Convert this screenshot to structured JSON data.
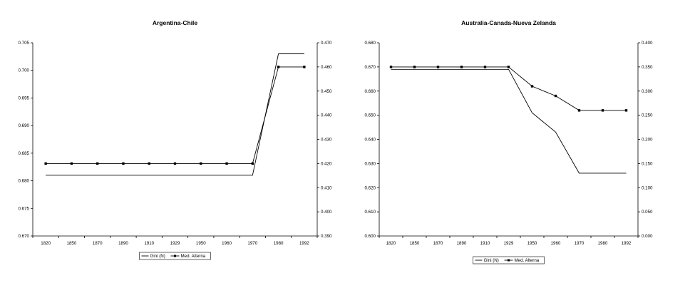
{
  "chart_data": [
    {
      "type": "line",
      "title": "Argentina-Chile",
      "categories": [
        "1820",
        "1850",
        "1870",
        "1890",
        "1910",
        "1929",
        "1950",
        "1960",
        "1970",
        "1980",
        "1992"
      ],
      "y_left": {
        "min": 0.67,
        "max": 0.705,
        "ticks": [
          "0.670",
          "0.675",
          "0.680",
          "0.685",
          "0.690",
          "0.695",
          "0.700",
          "0.705"
        ]
      },
      "y_right": {
        "min": 0.39,
        "max": 0.47,
        "ticks": [
          "0.390",
          "0.400",
          "0.410",
          "0.420",
          "0.430",
          "0.440",
          "0.450",
          "0.460",
          "0.470"
        ]
      },
      "series": [
        {
          "name": "Gini (N)",
          "axis": "left",
          "marker": "none",
          "values": [
            0.681,
            0.681,
            0.681,
            0.681,
            0.681,
            0.681,
            0.681,
            0.681,
            0.681,
            0.703,
            0.703
          ]
        },
        {
          "name": "Med. Alterna",
          "axis": "right",
          "marker": "square",
          "values": [
            0.42,
            0.42,
            0.42,
            0.42,
            0.42,
            0.42,
            0.42,
            0.42,
            0.42,
            0.46,
            0.46
          ]
        }
      ],
      "legend": {
        "position": "bottom-center"
      },
      "grid": false
    },
    {
      "type": "line",
      "title": "Australia-Canada-Nueva Zelanda",
      "categories": [
        "1820",
        "1850",
        "1870",
        "1890",
        "1910",
        "1929",
        "1950",
        "1960",
        "1970",
        "1980",
        "1992"
      ],
      "y_left": {
        "min": 0.6,
        "max": 0.68,
        "ticks": [
          "0.600",
          "0.610",
          "0.620",
          "0.630",
          "0.640",
          "0.650",
          "0.660",
          "0.670",
          "0.680"
        ]
      },
      "y_right": {
        "min": 0.0,
        "max": 0.4,
        "ticks": [
          "0.000",
          "0.050",
          "0.100",
          "0.150",
          "0.200",
          "0.250",
          "0.300",
          "0.350",
          "0.400"
        ]
      },
      "series": [
        {
          "name": "Gini (N)",
          "axis": "left",
          "marker": "none",
          "values": [
            0.669,
            0.669,
            0.669,
            0.669,
            0.669,
            0.669,
            0.651,
            0.643,
            0.626,
            0.626,
            0.626
          ]
        },
        {
          "name": "Med. Alterna",
          "axis": "right",
          "marker": "square",
          "values": [
            0.35,
            0.35,
            0.35,
            0.35,
            0.35,
            0.35,
            0.31,
            0.29,
            0.26,
            0.26,
            0.26
          ]
        }
      ],
      "legend": {
        "position": "bottom-center"
      },
      "grid": false
    }
  ]
}
